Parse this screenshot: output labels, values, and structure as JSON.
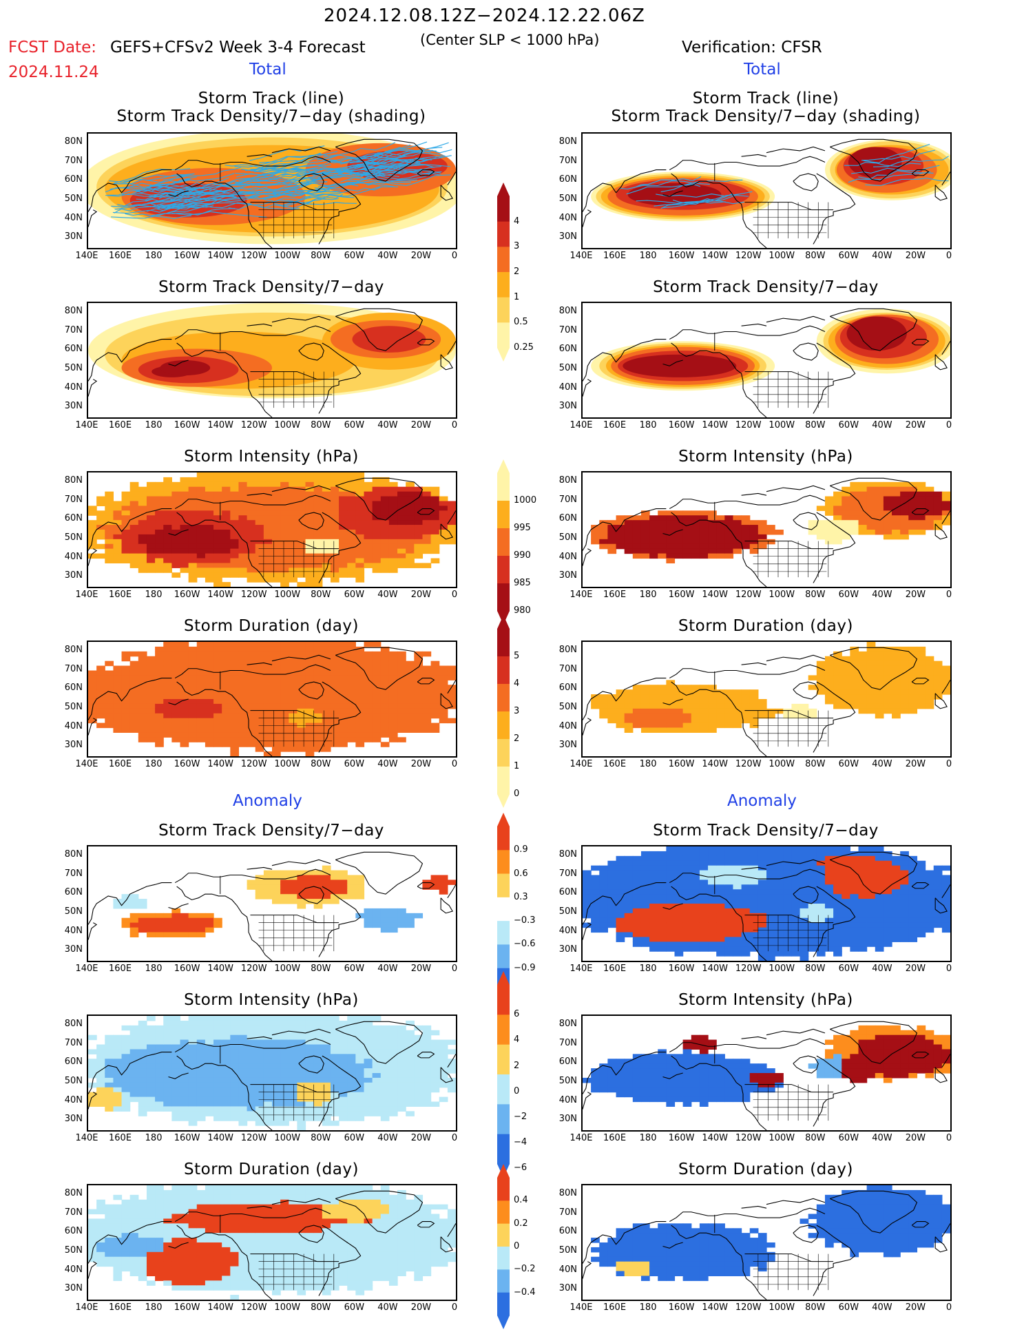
{
  "header": {
    "date_range": "2024.12.08.12Z−2024.12.22.06Z",
    "fcst_label": "FCST Date:",
    "fcst_date": "2024.11.24",
    "model": "GEFS+CFSv2 Week 3-4 Forecast",
    "criteria": "(Center SLP < 1000 hPa)",
    "verification": "Verification: CFSR",
    "left_section_total": "Total",
    "right_section_total": "Total",
    "left_section_anomaly": "Anomaly",
    "right_section_anomaly": "Anomaly"
  },
  "panel_titles": {
    "track_line": "Storm Track (line)",
    "track_density_shading": "Storm Track Density/7−day (shading)",
    "track_density": "Storm Track Density/7−day",
    "intensity": "Storm Intensity (hPa)",
    "duration": "Storm Duration (day)"
  },
  "axes": {
    "lat_labels": [
      "80N",
      "70N",
      "60N",
      "50N",
      "40N",
      "30N"
    ],
    "lon_labels": [
      "140E",
      "160E",
      "180",
      "160W",
      "140W",
      "120W",
      "100W",
      "80W",
      "60W",
      "40W",
      "20W",
      "0"
    ]
  },
  "colorbars": {
    "density": {
      "labels": [
        "4",
        "3",
        "2",
        "1",
        "0.5",
        "0.25"
      ],
      "colors": [
        "#a50f15",
        "#d7301f",
        "#f46d22",
        "#fdae1d",
        "#fdd35a",
        "#fff4a8"
      ]
    },
    "intensity": {
      "labels": [
        "1000",
        "995",
        "990",
        "985",
        "980"
      ],
      "colors": [
        "#fff4a8",
        "#fdae1d",
        "#f46d22",
        "#d7301f",
        "#a50f15"
      ]
    },
    "duration": {
      "labels": [
        "5",
        "4",
        "3",
        "2",
        "1",
        "0"
      ],
      "colors": [
        "#a50f15",
        "#d7301f",
        "#f46d22",
        "#fdae1d",
        "#fdd35a",
        "#fff4a8"
      ]
    },
    "density_anom": {
      "labels": [
        "0.9",
        "0.6",
        "0.3",
        "−0.3",
        "−0.6",
        "−0.9"
      ],
      "colors": [
        "#e8421c",
        "#fd8d1d",
        "#fdd35a",
        "#ffffff",
        "#b9e9f7",
        "#6bb3f0",
        "#2c6fe0"
      ]
    },
    "intensity_anom": {
      "labels": [
        "6",
        "4",
        "2",
        "0",
        "−2",
        "−4",
        "−6"
      ],
      "colors": [
        "#e8421c",
        "#fd8d1d",
        "#fdd35a",
        "#b9e9f7",
        "#6bb3f0",
        "#2c6fe0"
      ]
    },
    "duration_anom": {
      "labels": [
        "0.4",
        "0.2",
        "0",
        "−0.2",
        "−0.4"
      ],
      "colors": [
        "#e8421c",
        "#fd8d1d",
        "#fdd35a",
        "#b9e9f7",
        "#6bb3f0",
        "#2c6fe0"
      ]
    }
  }
}
